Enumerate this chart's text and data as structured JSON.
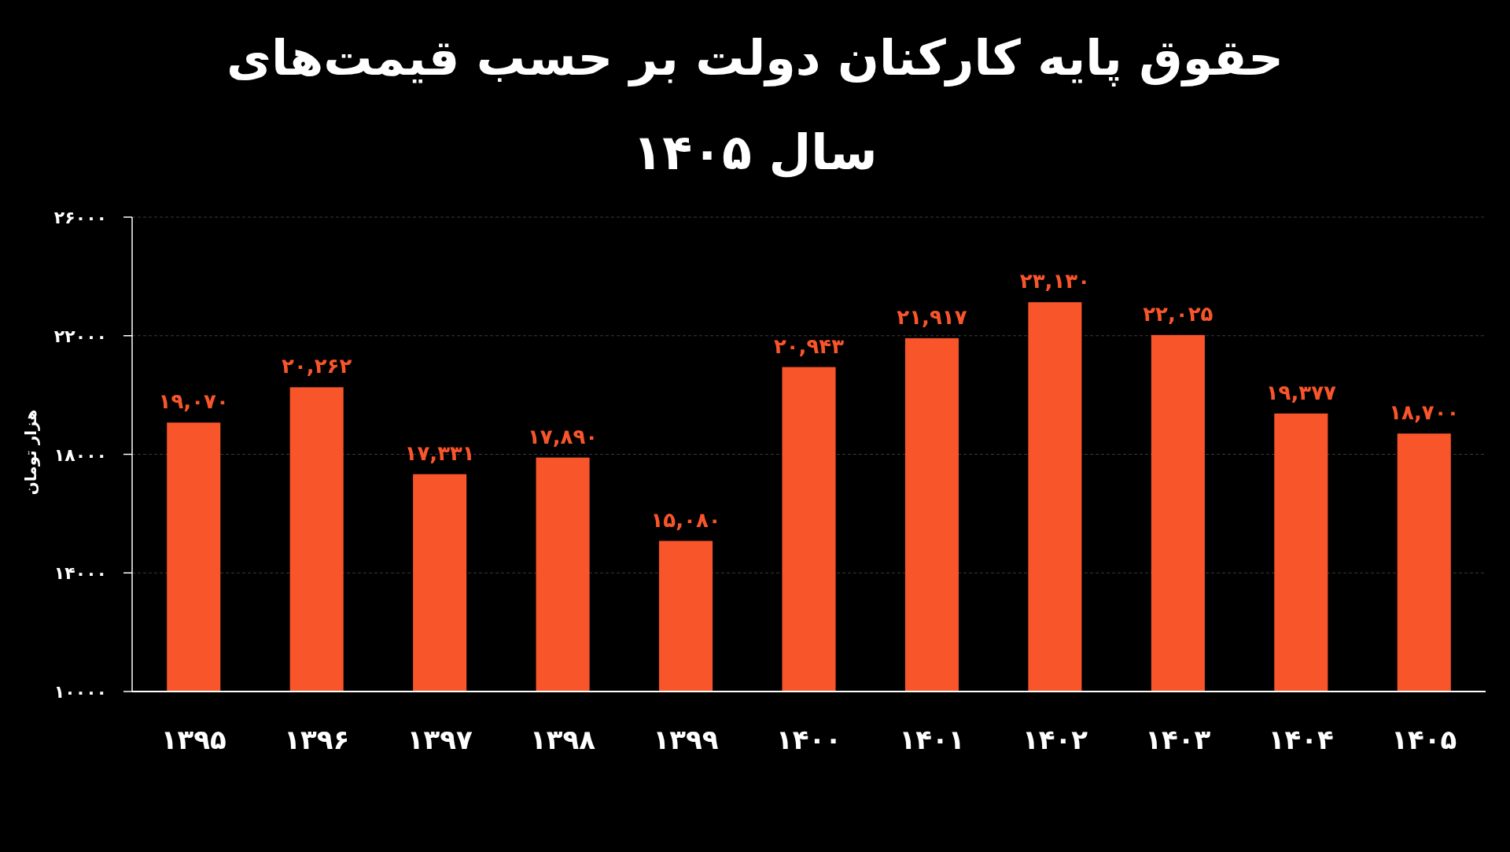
{
  "chart_data": {
    "type": "bar",
    "title": "حقوق پایه کارکنان دولت بر حسب قیمت‌های سال ۱۴۰۵",
    "ylabel": "هزار تومان",
    "categories": [
      "۱۳۹۵",
      "۱۳۹۶",
      "۱۳۹۷",
      "۱۳۹۸",
      "۱۳۹۹",
      "۱۴۰۰",
      "۱۴۰۱",
      "۱۴۰۲",
      "۱۴۰۳",
      "۱۴۰۴",
      "۱۴۰۵"
    ],
    "values": [
      19070,
      20262,
      17331,
      17890,
      15080,
      20943,
      21917,
      23130,
      22025,
      19377,
      18700
    ],
    "value_labels": [
      "۱۹,۰۷۰",
      "۲۰,۲۶۲",
      "۱۷,۳۳۱",
      "۱۷,۸۹۰",
      "۱۵,۰۸۰",
      "۲۰,۹۴۳",
      "۲۱,۹۱۷",
      "۲۳,۱۳۰",
      "۲۲,۰۲۵",
      "۱۹,۳۷۷",
      "۱۸,۷۰۰"
    ],
    "color": "#f9552b",
    "ylim": [
      10000,
      26000
    ],
    "yticks": [
      {
        "value": 10000,
        "label": "۱۰۰۰۰"
      },
      {
        "value": 14000,
        "label": "۱۴۰۰۰"
      },
      {
        "value": 18000,
        "label": "۱۸۰۰۰"
      },
      {
        "value": 22000,
        "label": "۲۲۰۰۰"
      },
      {
        "value": 26000,
        "label": "۲۶۰۰۰"
      }
    ],
    "grid": "y"
  }
}
